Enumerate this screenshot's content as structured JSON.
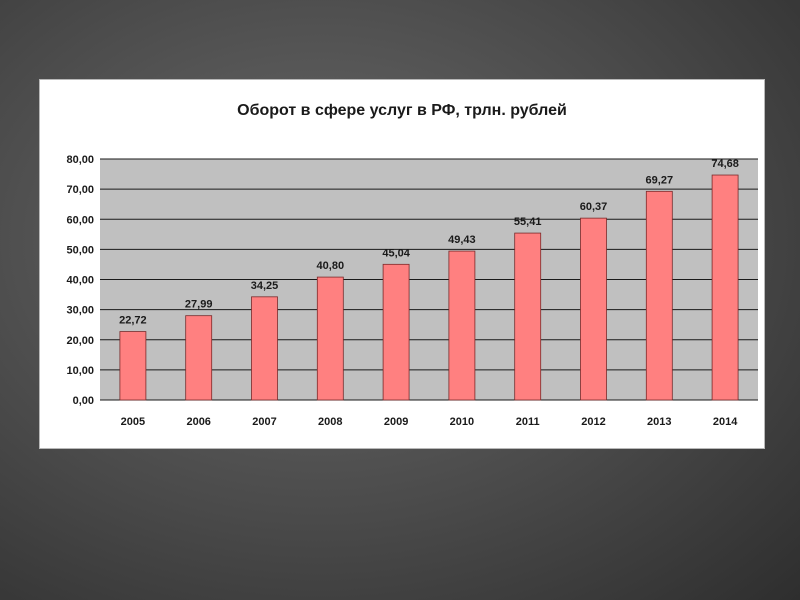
{
  "chart_data": {
    "type": "bar",
    "title": "Оборот в сфере услуг в РФ, трлн. рублей",
    "categories": [
      "2005",
      "2006",
      "2007",
      "2008",
      "2009",
      "2010",
      "2011",
      "2012",
      "2013",
      "2014"
    ],
    "values": [
      22.72,
      27.99,
      34.25,
      40.8,
      45.04,
      49.43,
      55.41,
      60.37,
      69.27,
      74.68
    ],
    "data_labels": [
      "22,72",
      "27,99",
      "34,25",
      "40,80",
      "45,04",
      "49,43",
      "55,41",
      "60,37",
      "69,27",
      "74,68"
    ],
    "yticks": [
      "0,00",
      "10,00",
      "20,00",
      "30,00",
      "40,00",
      "50,00",
      "60,00",
      "70,00",
      "80,00"
    ],
    "ylim": [
      0,
      80
    ],
    "grid": true,
    "legend": "none",
    "colors": {
      "bar": "#ff8080",
      "bar_edge": "#7a2a2a",
      "plot_bg": "#c0c0c0",
      "grid": "#1a1a1a"
    }
  }
}
